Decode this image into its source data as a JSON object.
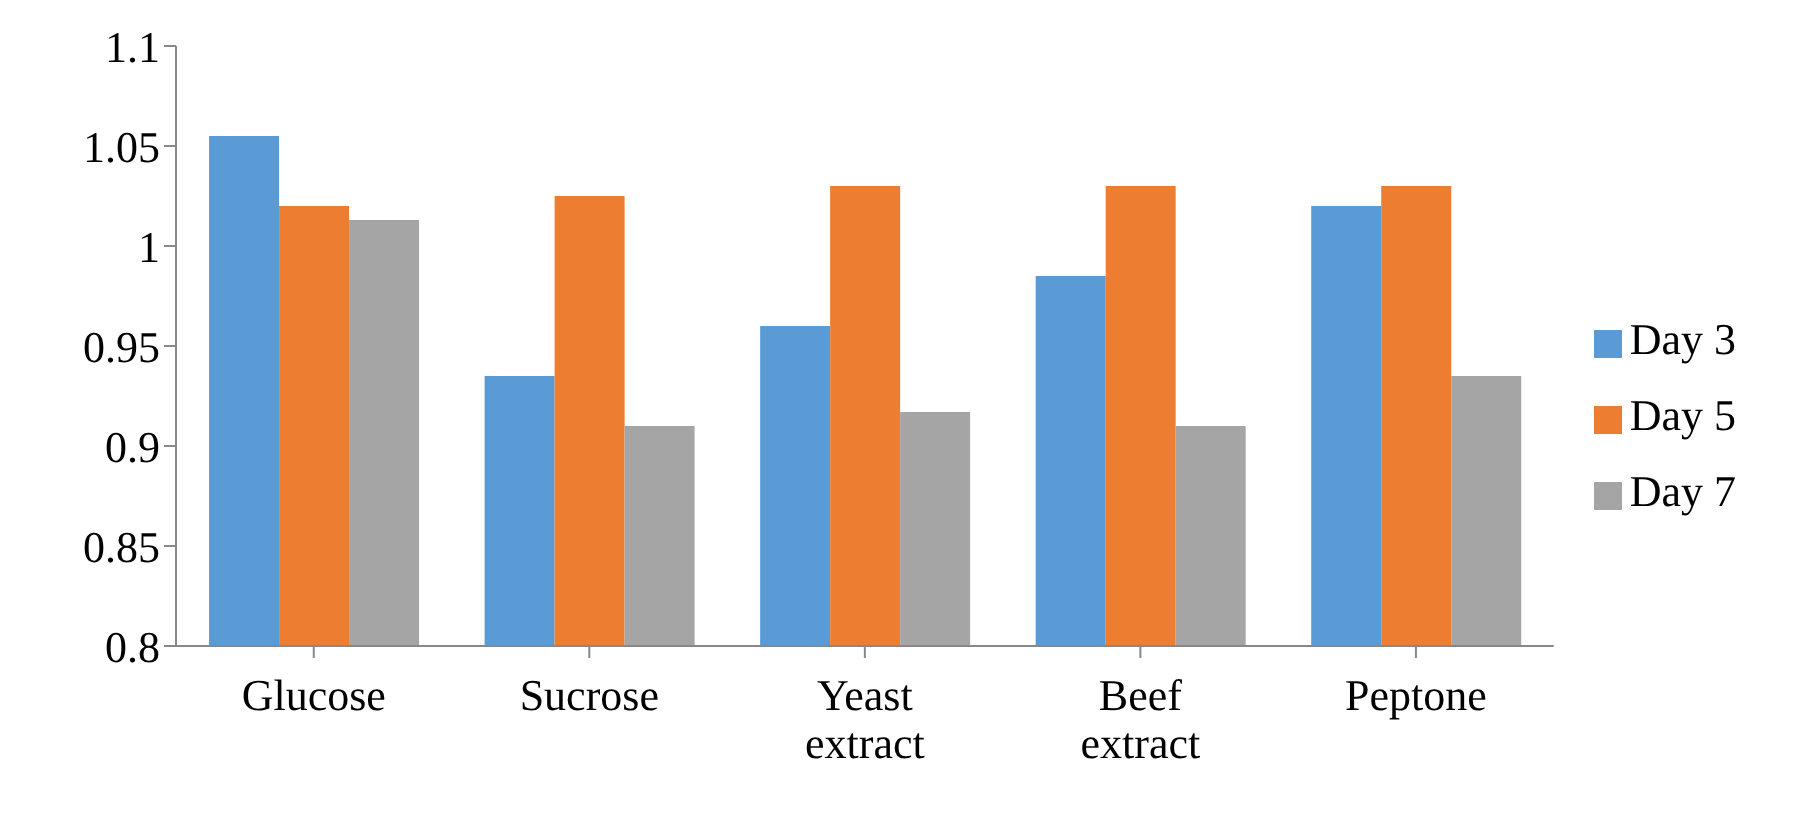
{
  "chart_data": {
    "type": "bar",
    "categories": [
      "Glucose",
      "Sucrose",
      "Yeast extract",
      "Beef extract",
      "Peptone"
    ],
    "series": [
      {
        "name": "Day 3",
        "color": "#5b9bd5",
        "values": [
          1.055,
          0.935,
          0.96,
          0.985,
          1.02
        ]
      },
      {
        "name": "Day 5",
        "color": "#ed7d31",
        "values": [
          1.02,
          1.025,
          1.03,
          1.03,
          1.03
        ]
      },
      {
        "name": "Day 7",
        "color": "#a5a5a5",
        "values": [
          1.013,
          0.91,
          0.917,
          0.91,
          0.935
        ]
      }
    ],
    "ylim": [
      0.8,
      1.1
    ],
    "yticks": [
      0.8,
      0.85,
      0.9,
      0.95,
      1,
      1.05,
      1.1
    ],
    "legend": "right"
  }
}
